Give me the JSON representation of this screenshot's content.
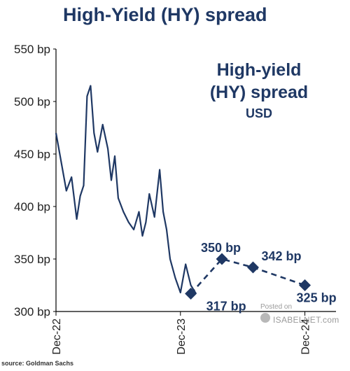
{
  "title": "High-Yield (HY) spread",
  "source": "source: Goldman Sachs",
  "watermark": {
    "posted": "Posted on",
    "site": "ISABELNET.com"
  },
  "colors": {
    "title": "#1f3864",
    "line": "#1f3864",
    "axis": "#000000"
  },
  "chart_data": {
    "type": "line",
    "title": "High-Yield (HY) spread",
    "inset_title": [
      "High-yield",
      "(HY) spread",
      "USD"
    ],
    "ylim": [
      300,
      550
    ],
    "yticks": [
      550,
      500,
      450,
      400,
      350,
      300
    ],
    "ytick_labels": [
      "550 bp",
      "500 bp",
      "450 bp",
      "400 bp",
      "350 bp",
      "300 bp"
    ],
    "xlim": [
      "Dec-22",
      "Mar-25"
    ],
    "xtick_labels": [
      "Dec-22",
      "Dec-23",
      "Dec-24"
    ],
    "grid": false,
    "series": [
      {
        "kind": "history",
        "x": [
          "Dec-22",
          "Jan-23",
          "Jan-23",
          "Feb-23",
          "Feb-23",
          "Feb-23",
          "Mar-23",
          "Mar-23",
          "Mar-23",
          "Apr-23",
          "Apr-23",
          "May-23",
          "May-23",
          "May-23",
          "Jun-23",
          "Jun-23",
          "Jul-23",
          "Jul-23",
          "Aug-23",
          "Aug-23",
          "Aug-23",
          "Sep-23",
          "Sep-23",
          "Oct-23",
          "Oct-23",
          "Oct-23",
          "Nov-23",
          "Nov-23",
          "Dec-23",
          "Dec-23",
          "Jan-24",
          "Jan-24"
        ],
        "values": [
          470,
          415,
          428,
          388,
          410,
          420,
          505,
          515,
          470,
          452,
          478,
          455,
          425,
          448,
          408,
          395,
          385,
          378,
          395,
          372,
          385,
          412,
          390,
          435,
          395,
          378,
          350,
          332,
          318,
          345,
          325,
          317
        ]
      },
      {
        "kind": "forecast",
        "x": [
          "Jan-24",
          "Apr-24",
          "Jul-24",
          "Dec-24"
        ],
        "values": [
          317,
          350,
          342,
          325
        ],
        "labels": [
          "317 bp",
          "350 bp",
          "342 bp",
          "325 bp"
        ]
      }
    ]
  }
}
